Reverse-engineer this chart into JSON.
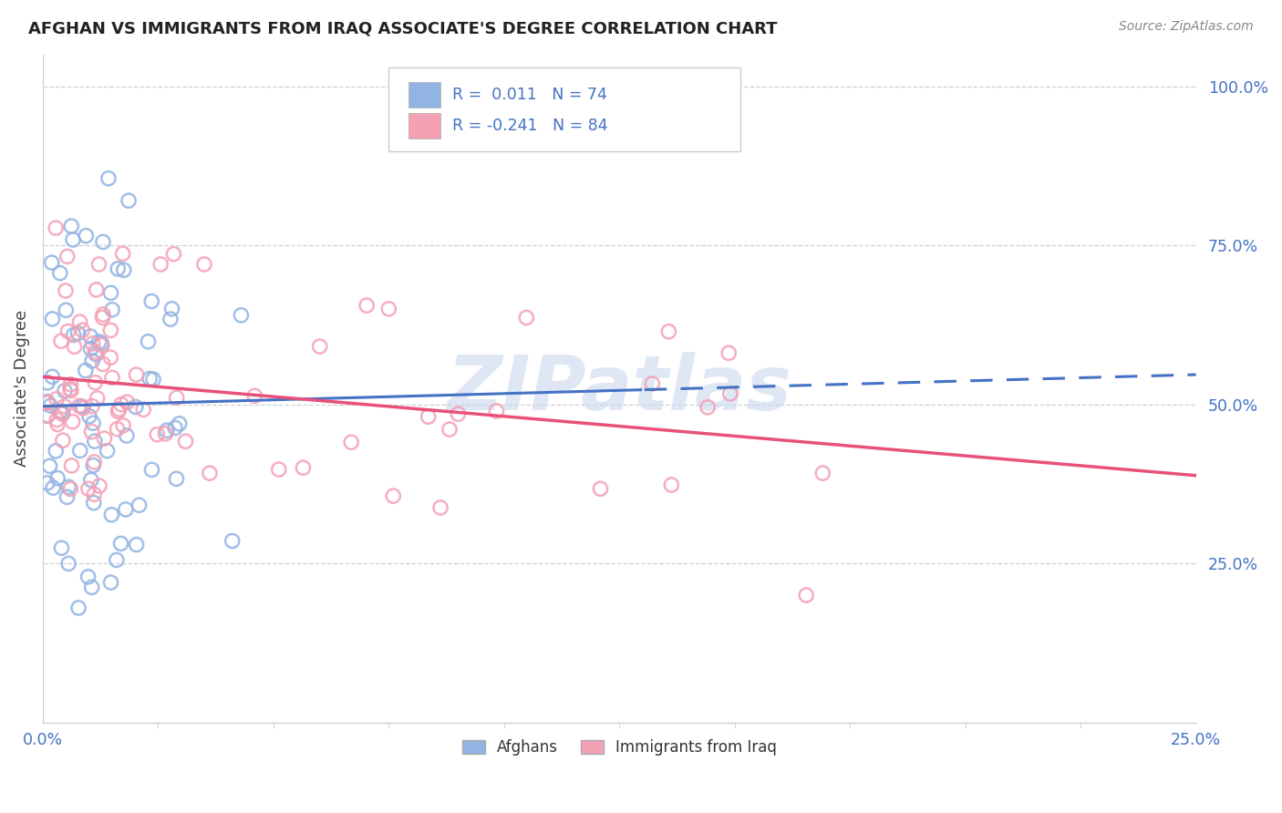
{
  "title": "AFGHAN VS IMMIGRANTS FROM IRAQ ASSOCIATE'S DEGREE CORRELATION CHART",
  "source": "Source: ZipAtlas.com",
  "ylabel": "Associate's Degree",
  "watermark": "ZIPatlas",
  "legend_label1": "Afghans",
  "legend_label2": "Immigrants from Iraq",
  "blue_color": "#92B4E3",
  "pink_color": "#F4A0B5",
  "trend_blue": "#4472C4",
  "trend_pink": "#E8517A",
  "xlim": [
    0.0,
    0.25
  ],
  "ylim": [
    0.0,
    1.05
  ],
  "background_color": "#ffffff",
  "grid_color": "#d0d0d0",
  "text_color": "#4472C4",
  "title_color": "#222222",
  "source_color": "#888888"
}
